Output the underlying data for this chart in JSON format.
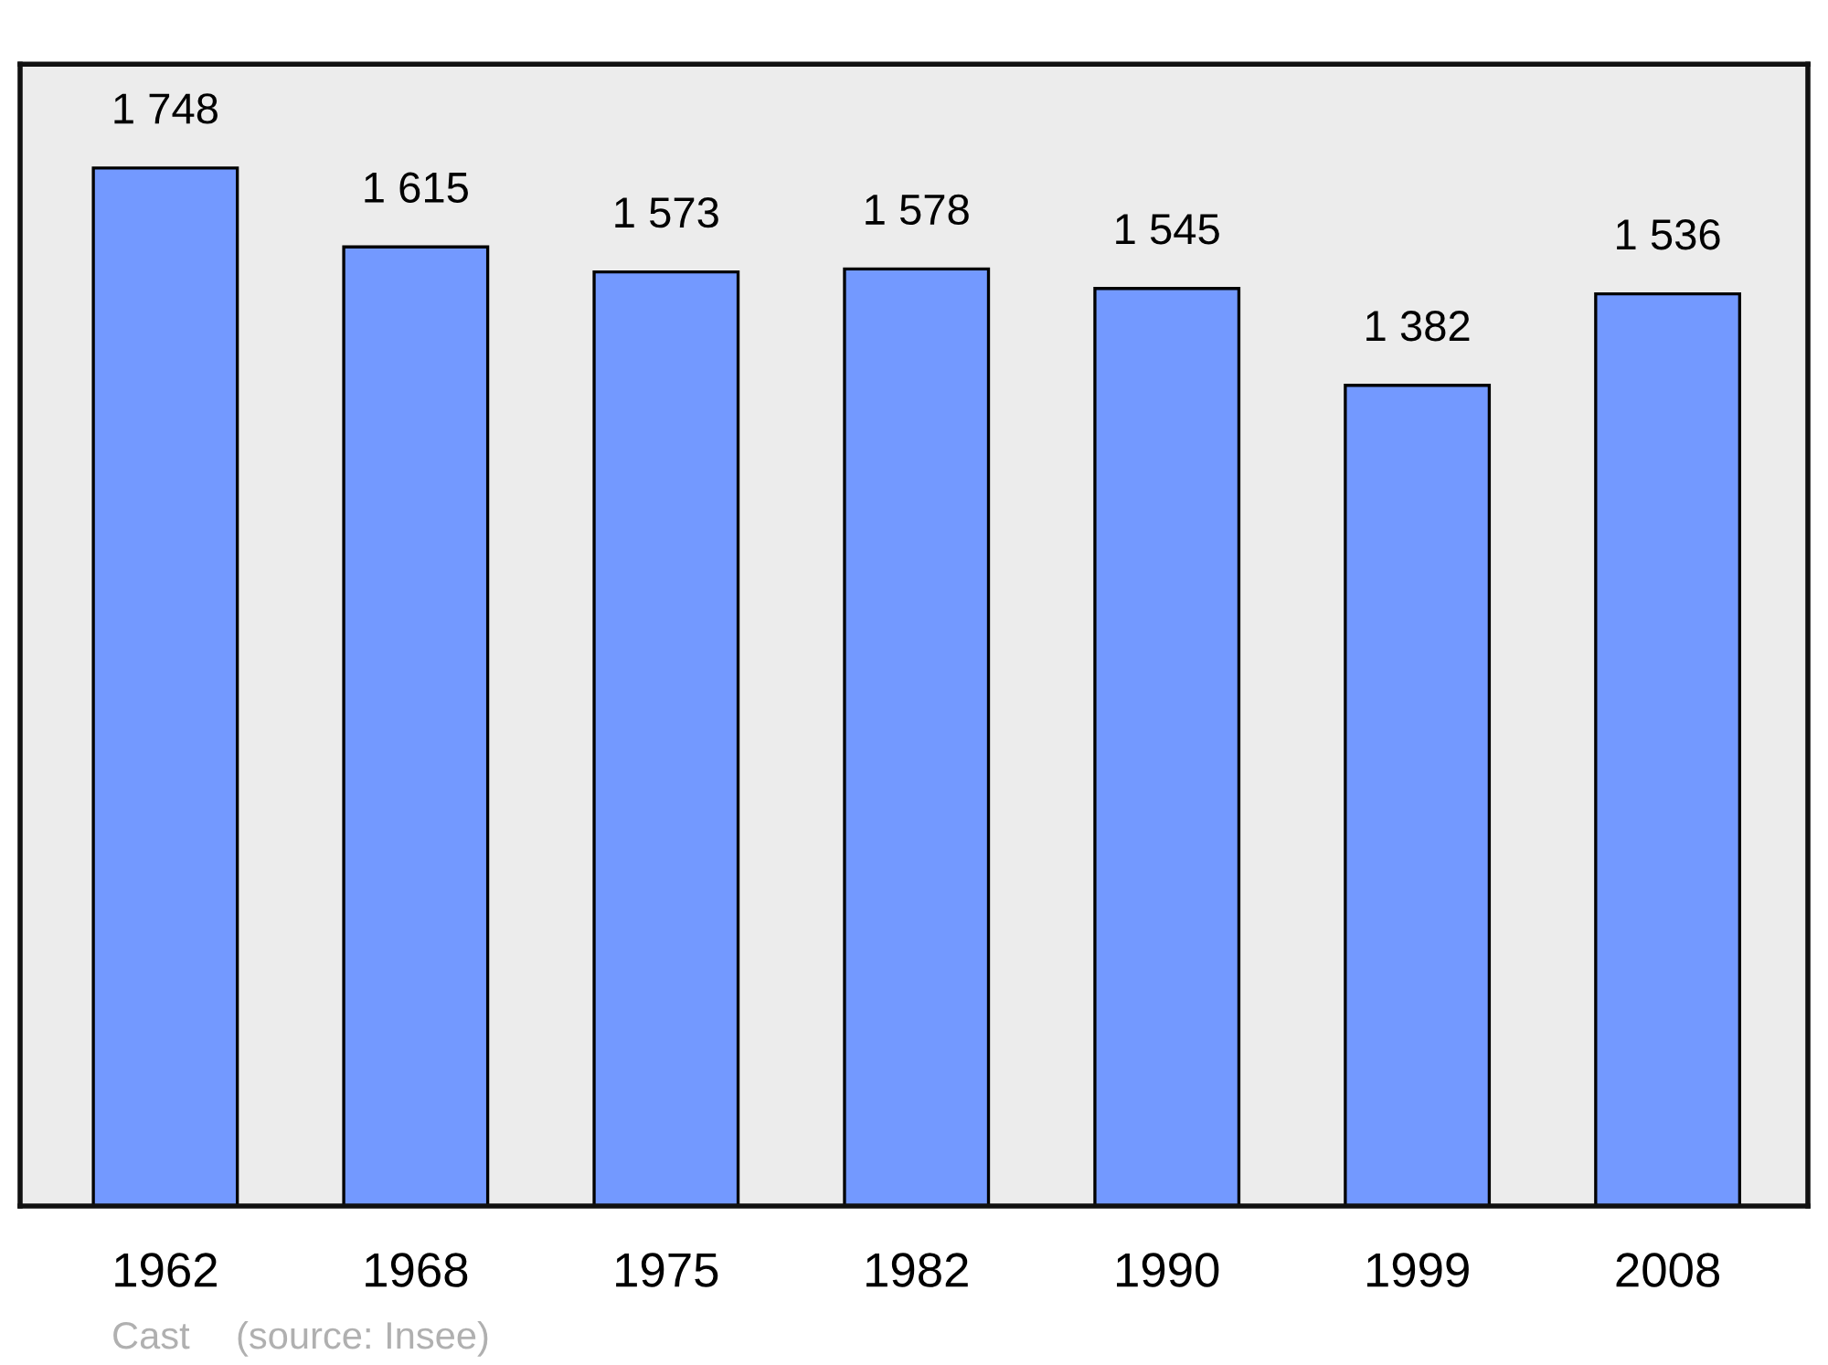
{
  "chart_data": {
    "type": "bar",
    "categories": [
      "1962",
      "1968",
      "1975",
      "1982",
      "1990",
      "1999",
      "2008"
    ],
    "values": [
      1748,
      1615,
      1573,
      1578,
      1545,
      1382,
      1536
    ],
    "value_labels": [
      "1 748",
      "1 615",
      "1 573",
      "1 578",
      "1 545",
      "1 382",
      "1 536"
    ],
    "color": "#7399ff",
    "grid": false,
    "legend": false,
    "annotations": [
      "Cast",
      "(source: Insee)"
    ]
  }
}
